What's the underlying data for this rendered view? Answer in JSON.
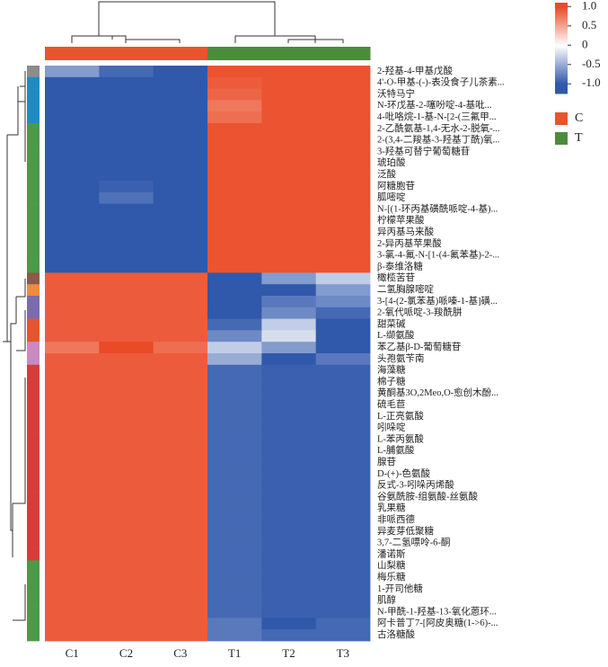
{
  "chart_data": {
    "type": "heatmap",
    "x": [
      "C1",
      "C2",
      "C3",
      "T1",
      "T2",
      "T3"
    ],
    "column_groups": [
      "C",
      "C",
      "C",
      "T",
      "T",
      "T"
    ],
    "groups": [
      {
        "name": "C",
        "color": "#e8542c"
      },
      {
        "name": "T",
        "color": "#4a8c3c"
      }
    ],
    "categories": [
      "2-羟基-4-甲基戊酸",
      "4'-O-甲基-(-)-表没食子儿茶素...",
      "沃特马宁",
      "N-环戊基-2-噻吩啶-4-基吡...",
      "4-吡咯烷-1-基-N-[2-(三氟甲...",
      "2-乙酰氨基-1,4-无水-2-脱氧-...",
      "2-(3,4-二羧基-3-羟基丁酰)氧...",
      "3-羟基可替宁葡萄糖苷",
      "琥珀酸",
      "泛酸",
      "阿糖胞苷",
      "胍嘧啶",
      "N-[(1-环丙基磺酰哌啶-4-基)...",
      "柠檬苹果酸",
      "异丙基马来酸",
      "2-异丙基苹果酸",
      "3-氯-4-氟-N-[1-(4-氟苯基)-2-...",
      "β-泰维洛糖",
      "橄榄苦苷",
      "二氢胸腺嘧啶",
      "3-[4-(2-氯苯基)哌嗪-1-基]磺...",
      "2-氧代哌啶-3-羧酰肼",
      "甜菜碱",
      "L-缬氨酸",
      "苯乙基β-D-葡萄糖苷",
      "头孢氨苄南",
      "海藻糖",
      "棉子糖",
      "黄酮基3O,2Meo,O-愈创木酚...",
      "硫毛苣",
      "L-正亮氨酸",
      "吲哚啶",
      "L-苯丙氨酸",
      "L-脯氨酸",
      "腺苷",
      "D-(+)-色氨酸",
      "反式-3-吲哚丙烯酸",
      "谷氨酰胺-组氨酸-丝氨酸",
      "乳果糖",
      "非哌西德",
      "异麦芽低聚糖",
      "3,7-二氢嘌呤-6-酮",
      "潘诺斯",
      "山梨糖",
      "梅乐糖",
      "1-开司他糖",
      "肌醇",
      "N-甲酰-1-羟基-13-氧化蒽环...",
      "阿卡普丁7-[阿皮奥糖(1->6)-...",
      "古洛糖酸"
    ],
    "row_colors": [
      "#8c8c8c",
      "#1f8bc4",
      "#1f8bc4",
      "#1f8bc4",
      "#1f8bc4",
      "#4a9a47",
      "#4a9a47",
      "#4a9a47",
      "#4a9a47",
      "#4a9a47",
      "#4a9a47",
      "#4a9a47",
      "#4a9a47",
      "#4a9a47",
      "#4a9a47",
      "#4a9a47",
      "#4a9a47",
      "#4a9a47",
      "#8b5a4a",
      "#f08a3c",
      "#7b6bb0",
      "#7b6bb0",
      "#e8542c",
      "#e8542c",
      "#c98ac0",
      "#c98ac0",
      "#d93b3b",
      "#d93b3b",
      "#d93b3b",
      "#d93b3b",
      "#d93b3b",
      "#d93b3b",
      "#d93b3b",
      "#d93b3b",
      "#d93b3b",
      "#d93b3b",
      "#d93b3b",
      "#d93b3b",
      "#d93b3b",
      "#d93b3b",
      "#d93b3b",
      "#d93b3b",
      "#d93b3b",
      "#4a9a47",
      "#4a9a47",
      "#4a9a47",
      "#4a9a47",
      "#4a9a47",
      "#4a9a47",
      "#4a9a47"
    ],
    "values": [
      [
        -0.6,
        -0.9,
        -1.1,
        0.95,
        0.95,
        0.95
      ],
      [
        -1.0,
        -1.05,
        -1.05,
        0.9,
        0.95,
        0.95
      ],
      [
        -1.0,
        -1.05,
        -1.0,
        0.85,
        0.95,
        0.95
      ],
      [
        -1.0,
        -1.0,
        -1.0,
        0.75,
        0.95,
        0.95
      ],
      [
        -1.0,
        -1.05,
        -1.0,
        0.8,
        0.95,
        0.95
      ],
      [
        -1.0,
        -1.0,
        -1.0,
        0.95,
        0.95,
        0.95
      ],
      [
        -1.0,
        -1.0,
        -1.0,
        0.95,
        0.95,
        0.95
      ],
      [
        -1.0,
        -1.0,
        -1.0,
        0.95,
        0.95,
        0.95
      ],
      [
        -1.0,
        -1.0,
        -1.0,
        0.95,
        0.95,
        0.95
      ],
      [
        -1.0,
        -1.0,
        -1.0,
        0.95,
        0.95,
        0.95
      ],
      [
        -1.0,
        -0.95,
        -1.0,
        0.95,
        0.95,
        0.95
      ],
      [
        -1.0,
        -0.85,
        -1.0,
        0.95,
        0.95,
        0.95
      ],
      [
        -1.0,
        -1.0,
        -1.0,
        0.95,
        0.95,
        0.95
      ],
      [
        -1.0,
        -1.0,
        -1.0,
        0.95,
        0.95,
        0.95
      ],
      [
        -1.0,
        -1.0,
        -1.0,
        0.95,
        0.95,
        0.95
      ],
      [
        -1.0,
        -1.0,
        -1.0,
        0.95,
        0.95,
        0.95
      ],
      [
        -1.0,
        -1.0,
        -1.0,
        0.95,
        0.95,
        0.95
      ],
      [
        -1.0,
        -1.0,
        -1.0,
        0.95,
        0.95,
        0.95
      ],
      [
        0.9,
        0.9,
        0.9,
        -1.2,
        -0.6,
        -0.3
      ],
      [
        0.9,
        0.9,
        0.9,
        -1.1,
        -1.0,
        -0.6
      ],
      [
        0.9,
        0.9,
        0.9,
        -1.1,
        -0.8,
        -0.7
      ],
      [
        0.9,
        0.9,
        0.9,
        -1.0,
        -0.7,
        -0.9
      ],
      [
        0.9,
        0.9,
        0.9,
        -0.9,
        -0.3,
        -1.0
      ],
      [
        0.9,
        0.9,
        0.9,
        -0.7,
        -0.2,
        -1.2
      ],
      [
        0.75,
        1.0,
        0.8,
        -0.3,
        -0.6,
        -1.0
      ],
      [
        0.9,
        0.9,
        0.9,
        -0.5,
        -1.2,
        -0.8
      ],
      [
        0.9,
        0.9,
        0.9,
        -0.9,
        -0.95,
        -0.95
      ],
      [
        0.9,
        0.9,
        0.9,
        -0.9,
        -0.95,
        -0.95
      ],
      [
        0.9,
        0.9,
        0.9,
        -0.9,
        -0.95,
        -0.95
      ],
      [
        0.9,
        0.9,
        0.9,
        -0.9,
        -0.95,
        -0.95
      ],
      [
        0.9,
        0.9,
        0.9,
        -0.9,
        -0.95,
        -0.95
      ],
      [
        0.9,
        0.9,
        0.9,
        -0.9,
        -0.95,
        -0.95
      ],
      [
        0.9,
        0.9,
        0.9,
        -0.9,
        -0.95,
        -0.95
      ],
      [
        0.9,
        0.9,
        0.9,
        -0.9,
        -0.95,
        -0.95
      ],
      [
        0.9,
        0.9,
        0.9,
        -0.9,
        -0.95,
        -0.95
      ],
      [
        0.9,
        0.9,
        0.9,
        -0.9,
        -0.95,
        -0.95
      ],
      [
        0.9,
        0.9,
        0.9,
        -0.9,
        -0.95,
        -0.95
      ],
      [
        0.9,
        0.9,
        0.9,
        -0.9,
        -0.95,
        -0.95
      ],
      [
        0.9,
        0.9,
        0.9,
        -0.9,
        -0.95,
        -0.95
      ],
      [
        0.9,
        0.9,
        0.9,
        -0.9,
        -0.95,
        -0.95
      ],
      [
        0.9,
        0.9,
        0.9,
        -0.9,
        -0.95,
        -0.95
      ],
      [
        0.9,
        0.9,
        0.9,
        -0.9,
        -0.95,
        -0.95
      ],
      [
        0.9,
        0.9,
        0.9,
        -0.9,
        -0.95,
        -0.95
      ],
      [
        0.9,
        0.9,
        0.9,
        -0.9,
        -0.95,
        -0.95
      ],
      [
        0.9,
        0.9,
        0.9,
        -0.9,
        -0.95,
        -0.95
      ],
      [
        0.9,
        0.9,
        0.9,
        -0.9,
        -0.95,
        -0.95
      ],
      [
        0.9,
        0.9,
        0.9,
        -0.9,
        -0.95,
        -0.95
      ],
      [
        0.9,
        0.9,
        0.9,
        -0.9,
        -0.95,
        -0.95
      ],
      [
        0.9,
        0.9,
        0.9,
        -0.8,
        -1.2,
        -0.9
      ],
      [
        0.9,
        0.9,
        0.9,
        -0.8,
        -0.9,
        -0.9
      ]
    ],
    "clim": [
      -1.25,
      1.1
    ],
    "cticks": [
      {
        "value": 1,
        "label": "1.0"
      },
      0.5,
      0,
      -0.5,
      {
        "value": -1,
        "label": "-1.0"
      }
    ],
    "colors": {
      "low": "#3058ab",
      "mid": "#ffffff",
      "high": "#ea4a26"
    }
  }
}
